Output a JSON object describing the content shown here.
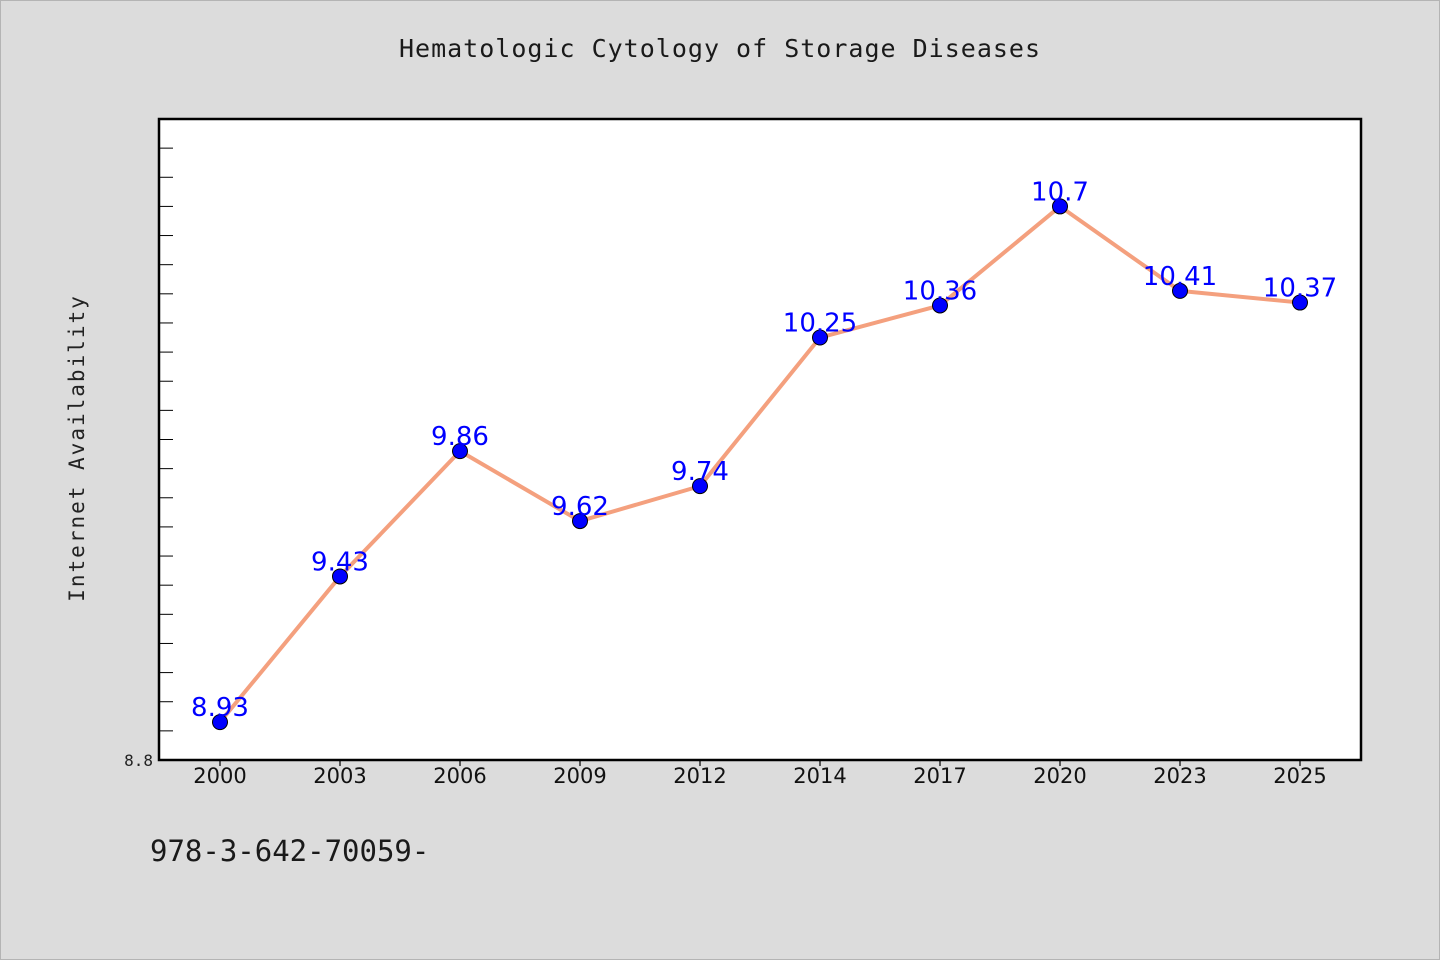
{
  "chart_data": {
    "type": "line",
    "title": "Hematologic Cytology of Storage Diseases",
    "ylabel": "Internet Availability",
    "xlabel": "",
    "x": [
      "2000",
      "2003",
      "2006",
      "2009",
      "2012",
      "2014",
      "2017",
      "2020",
      "2023",
      "2025"
    ],
    "series": [
      {
        "values": [
          8.93,
          9.43,
          9.86,
          9.62,
          9.74,
          10.25,
          10.36,
          10.7,
          10.41,
          10.37
        ],
        "value_labels": [
          "8.93",
          "9.43",
          "9.86",
          "9.62",
          "9.74",
          "10.25",
          "10.36",
          "10.7",
          "10.41",
          "10.37"
        ],
        "line_color": "#f4a07e",
        "marker_color": "#0000ff"
      }
    ],
    "ylim": [
      8.8,
      11.0
    ],
    "y_tick_labels": [
      "8.8"
    ],
    "grid": false,
    "legend": "none"
  },
  "footnote": "978-3-642-70059-",
  "colors": {
    "background": "#dcdcdc",
    "plot_background": "#ffffff",
    "label_color": "#0000ff"
  }
}
